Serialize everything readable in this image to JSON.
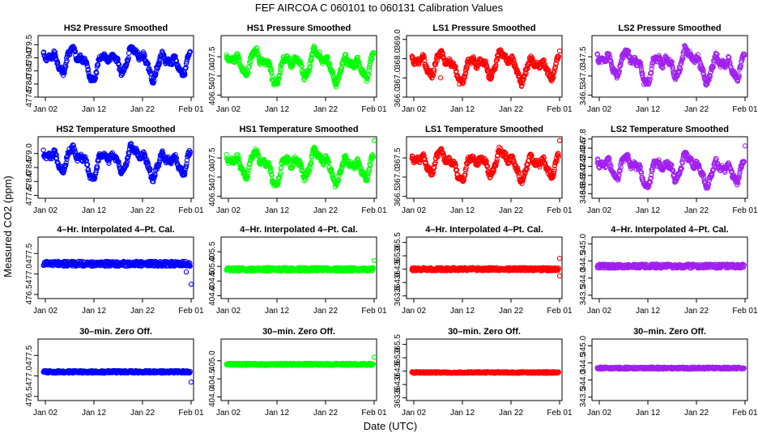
{
  "figure": {
    "title": "FEF    AIRCOA C    060101 to 060131    Calibration Values",
    "xlabel": "Date (UTC)",
    "ylabel": "Measured CO2 (ppm)"
  },
  "x_tick_labels": [
    "Jan 02",
    "Jan 12",
    "Jan 22",
    "Feb 01"
  ],
  "colors": {
    "HS2": "#0000ff",
    "HS1": "#00ff00",
    "LS1": "#ff0000",
    "LS2": "#a020f0"
  },
  "chart_data": [
    {
      "type": "scatter",
      "title": "HS2 Pressure Smoothed",
      "column": "HS2",
      "row": 0,
      "ylim": [
        477.5,
        479.85
      ],
      "yticks": [
        477.5,
        478.0,
        478.5,
        479.0,
        479.5
      ],
      "ytick_labels": [
        "477.5",
        "478.0",
        "478.5",
        "479.0",
        "479.5"
      ],
      "xlim": [
        0,
        31
      ],
      "profile": "drift",
      "center": 478.85,
      "amplitude": 0.7,
      "noise": 0.1,
      "outliers": []
    },
    {
      "type": "scatter",
      "title": "HS1 Pressure Smoothed",
      "column": "HS1",
      "row": 0,
      "ylim": [
        406.45,
        408.05
      ],
      "yticks": [
        406.5,
        407.0,
        407.5
      ],
      "ytick_labels": [
        "406.5",
        "407.0",
        "407.5"
      ],
      "xlim": [
        0,
        31
      ],
      "profile": "drift",
      "center": 407.3,
      "amplitude": 0.5,
      "noise": 0.07,
      "outliers": [
        [
          31,
          407.6
        ]
      ]
    },
    {
      "type": "scatter",
      "title": "LS1 Pressure Smoothed",
      "column": "LS1",
      "row": 0,
      "ylim": [
        366.0,
        369.2
      ],
      "yticks": [
        366.0,
        367.0,
        368.0,
        369.0
      ],
      "ytick_labels": [
        "366.0",
        "367.0",
        "368.0",
        "369.0"
      ],
      "xlim": [
        0,
        31
      ],
      "profile": "drift",
      "center": 367.65,
      "amplitude": 0.9,
      "noise": 0.15,
      "outliers": [
        [
          31,
          368.4
        ],
        [
          6.5,
          367.0
        ]
      ]
    },
    {
      "type": "scatter",
      "title": "LS2 Pressure Smoothed",
      "column": "LS2",
      "row": 0,
      "ylim": [
        346.45,
        348.05
      ],
      "yticks": [
        346.5,
        347.0,
        347.5
      ],
      "ytick_labels": [
        "346.5",
        "347.0",
        "347.5"
      ],
      "xlim": [
        0,
        31
      ],
      "profile": "drift",
      "center": 347.3,
      "amplitude": 0.5,
      "noise": 0.08,
      "outliers": [
        [
          31,
          347.55
        ]
      ]
    },
    {
      "type": "scatter",
      "title": "HS2 Temperature Smoothed",
      "column": "HS2",
      "row": 1,
      "ylim": [
        477.4,
        479.6
      ],
      "yticks": [
        477.5,
        478.0,
        478.5,
        479.0
      ],
      "ytick_labels": [
        "477.5",
        "478.0",
        "478.5",
        "479.0"
      ],
      "xlim": [
        0,
        31
      ],
      "profile": "drift",
      "center": 478.75,
      "amplitude": 0.65,
      "noise": 0.1,
      "outliers": []
    },
    {
      "type": "scatter",
      "title": "HS1 Temperature Smoothed",
      "column": "HS1",
      "row": 1,
      "ylim": [
        406.45,
        408.05
      ],
      "yticks": [
        406.5,
        407.0,
        407.5
      ],
      "ytick_labels": [
        "406.5",
        "407.0",
        "407.5"
      ],
      "xlim": [
        0,
        31
      ],
      "profile": "drift",
      "center": 407.3,
      "amplitude": 0.5,
      "noise": 0.07,
      "outliers": [
        [
          31,
          407.95
        ]
      ]
    },
    {
      "type": "scatter",
      "title": "LS1 Temperature Smoothed",
      "column": "LS1",
      "row": 1,
      "ylim": [
        366.45,
        368.05
      ],
      "yticks": [
        366.5,
        367.0,
        367.5
      ],
      "ytick_labels": [
        "366.5",
        "367.0",
        "367.5"
      ],
      "xlim": [
        0,
        31
      ],
      "profile": "drift",
      "center": 367.35,
      "amplitude": 0.45,
      "noise": 0.07,
      "outliers": [
        [
          31,
          367.95
        ]
      ]
    },
    {
      "type": "scatter",
      "title": "LS2 Temperature Smoothed",
      "column": "LS2",
      "row": 1,
      "ylim": [
        346.5,
        347.85
      ],
      "yticks": [
        346.6,
        346.8,
        347.0,
        347.2,
        347.4,
        347.6,
        347.8
      ],
      "ytick_labels": [
        "346.6",
        "346.8",
        "347.0",
        "347.2",
        "347.4",
        "347.6",
        "347.8"
      ],
      "xlim": [
        0,
        31
      ],
      "profile": "drift",
      "center": 347.15,
      "amplitude": 0.4,
      "noise": 0.06,
      "outliers": [
        [
          31,
          347.65
        ]
      ]
    },
    {
      "type": "scatter",
      "title": "4–Hr. Interpolated 4–Pt. Cal.",
      "column": "HS2",
      "row": 2,
      "ylim": [
        476.4,
        477.9
      ],
      "yticks": [
        476.5,
        477.0,
        477.5
      ],
      "ytick_labels": [
        "476.5",
        "477.0",
        "477.5"
      ],
      "xlim": [
        0,
        31
      ],
      "profile": "flat",
      "center": 477.25,
      "amplitude": 0,
      "noise": 0.06,
      "outliers": [
        [
          31,
          476.75
        ],
        [
          30,
          477.05
        ]
      ]
    },
    {
      "type": "scatter",
      "title": "4–Hr. Interpolated 4–Pt. Cal.",
      "column": "HS1",
      "row": 2,
      "ylim": [
        403.9,
        406.0
      ],
      "yticks": [
        404.0,
        404.5,
        405.0,
        405.5
      ],
      "ytick_labels": [
        "404.0",
        "404.5",
        "405.0",
        "405.5"
      ],
      "xlim": [
        0,
        31
      ],
      "profile": "flat",
      "center": 404.9,
      "amplitude": 0,
      "noise": 0.06,
      "outliers": [
        [
          31,
          405.2
        ]
      ]
    },
    {
      "type": "scatter",
      "title": "4–Hr. Interpolated 4–Pt. Cal.",
      "column": "LS1",
      "row": 2,
      "ylim": [
        363.4,
        365.7
      ],
      "yticks": [
        363.5,
        364.0,
        364.5,
        365.0,
        365.5
      ],
      "ytick_labels": [
        "363.5",
        "364.0",
        "364.5",
        "365.0",
        "365.5"
      ],
      "xlim": [
        0,
        31
      ],
      "profile": "flat",
      "center": 364.5,
      "amplitude": 0,
      "noise": 0.06,
      "outliers": [
        [
          31,
          364.9
        ],
        [
          31,
          364.25
        ]
      ]
    },
    {
      "type": "scatter",
      "title": "4–Hr. Interpolated 4–Pt. Cal.",
      "column": "LS2",
      "row": 2,
      "ylim": [
        343.4,
        345.2
      ],
      "yticks": [
        343.5,
        344.0,
        344.5,
        345.0
      ],
      "ytick_labels": [
        "343.5",
        "344.0",
        "344.5",
        "345.0"
      ],
      "xlim": [
        0,
        31
      ],
      "profile": "flat",
      "center": 344.35,
      "amplitude": 0,
      "noise": 0.06,
      "outliers": []
    },
    {
      "type": "scatter",
      "title": "30–min. Zero Off.",
      "column": "HS2",
      "row": 3,
      "ylim": [
        476.4,
        477.9
      ],
      "yticks": [
        476.5,
        477.0,
        477.5
      ],
      "ytick_labels": [
        "476.5",
        "477.0",
        "477.5"
      ],
      "xlim": [
        0,
        31
      ],
      "profile": "flat",
      "center": 477.1,
      "amplitude": 0,
      "noise": 0.03,
      "outliers": [
        [
          31,
          476.85
        ]
      ]
    },
    {
      "type": "scatter",
      "title": "30–min. Zero Off.",
      "column": "HS1",
      "row": 3,
      "ylim": [
        403.9,
        405.6
      ],
      "yticks": [
        404.0,
        404.5,
        405.0
      ],
      "ytick_labels": [
        "404.0",
        "404.5",
        "405.0"
      ],
      "xlim": [
        0,
        31
      ],
      "profile": "flat",
      "center": 404.9,
      "amplitude": 0,
      "noise": 0.03,
      "outliers": [
        [
          31,
          405.1
        ]
      ]
    },
    {
      "type": "scatter",
      "title": "30–min. Zero Off.",
      "column": "LS1",
      "row": 3,
      "ylim": [
        363.4,
        365.7
      ],
      "yticks": [
        363.5,
        364.0,
        364.5,
        365.0,
        365.5
      ],
      "ytick_labels": [
        "363.5",
        "364.0",
        "364.5",
        "365.0",
        "365.5"
      ],
      "xlim": [
        0,
        31
      ],
      "profile": "flat",
      "center": 364.45,
      "amplitude": 0,
      "noise": 0.03,
      "outliers": []
    },
    {
      "type": "scatter",
      "title": "30–min. Zero Off.",
      "column": "LS2",
      "row": 3,
      "ylim": [
        343.4,
        345.2
      ],
      "yticks": [
        343.5,
        344.0,
        344.5,
        345.0
      ],
      "ytick_labels": [
        "343.5",
        "344.0",
        "344.5",
        "345.0"
      ],
      "xlim": [
        0,
        31
      ],
      "profile": "flat",
      "center": 344.35,
      "amplitude": 0,
      "noise": 0.03,
      "outliers": []
    }
  ]
}
